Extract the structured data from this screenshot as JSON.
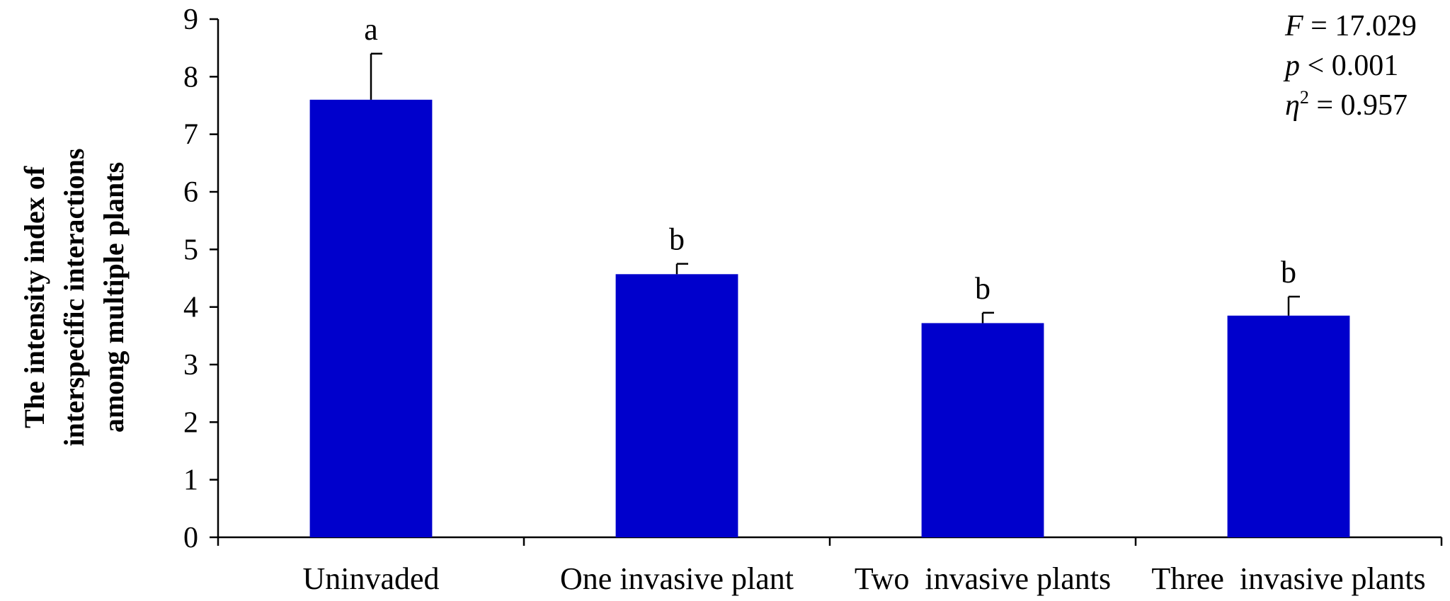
{
  "chart_data": {
    "type": "bar",
    "categories": [
      "Uninvaded",
      "One invasive plant",
      "Two  invasive plants",
      "Three  invasive plants"
    ],
    "values": [
      7.6,
      4.57,
      3.72,
      3.85
    ],
    "error_upper": [
      8.4,
      4.75,
      3.9,
      4.18
    ],
    "significance_letters": [
      "a",
      "b",
      "b",
      "b"
    ],
    "ylabel_lines": [
      "The intensity index of",
      "interspecific interactions",
      "among multiple plants"
    ],
    "xlabel": "",
    "ylim": [
      0,
      9
    ],
    "yticks": [
      0,
      1,
      2,
      3,
      4,
      5,
      6,
      7,
      8,
      9
    ],
    "grid": false,
    "bar_color": "#0000CC",
    "stats": {
      "F": {
        "symbol": "F",
        "op": " = ",
        "value": "17.029"
      },
      "p": {
        "symbol": "p",
        "op": " < ",
        "value": "0.001"
      },
      "eta": {
        "symbol": "η",
        "sup": "2",
        "op": " = ",
        "value": "0.957"
      }
    }
  }
}
